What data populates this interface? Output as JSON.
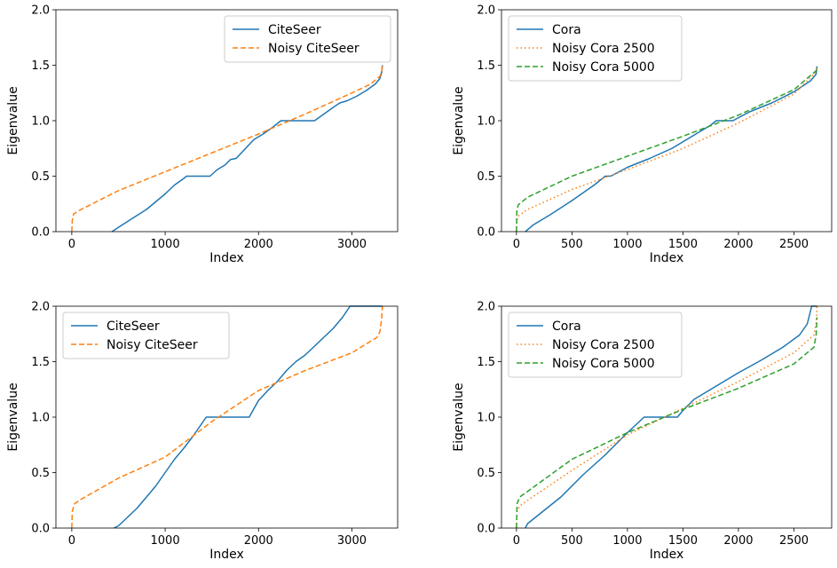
{
  "chart_data": [
    {
      "type": "line",
      "xlabel": "Index",
      "ylabel": "Eigenvalue",
      "xlim": [
        -170,
        3490
      ],
      "ylim": [
        0,
        2
      ],
      "xticks": [
        0,
        1000,
        2000,
        3000
      ],
      "xtick_labels": [
        "0",
        "1000",
        "2000",
        "3000"
      ],
      "yticks": [
        0,
        0.5,
        1.0,
        1.5,
        2.0
      ],
      "ytick_labels": [
        "0.0",
        "0.5",
        "1.0",
        "1.5",
        "2.0"
      ],
      "legend_position": "top-right",
      "grid": false,
      "series": [
        {
          "name": "CiteSeer",
          "color": "#1f77b4",
          "dash": "solid",
          "points": [
            [
              430,
              0
            ],
            [
              520,
              0.05
            ],
            [
              650,
              0.12
            ],
            [
              800,
              0.2
            ],
            [
              900,
              0.27
            ],
            [
              1000,
              0.34
            ],
            [
              1100,
              0.42
            ],
            [
              1200,
              0.48
            ],
            [
              1230,
              0.5
            ],
            [
              1480,
              0.5
            ],
            [
              1560,
              0.56
            ],
            [
              1640,
              0.6
            ],
            [
              1700,
              0.65
            ],
            [
              1760,
              0.66
            ],
            [
              1850,
              0.74
            ],
            [
              1950,
              0.83
            ],
            [
              2050,
              0.88
            ],
            [
              2150,
              0.94
            ],
            [
              2240,
              1.0
            ],
            [
              2600,
              1.0
            ],
            [
              2700,
              1.06
            ],
            [
              2800,
              1.12
            ],
            [
              2870,
              1.16
            ],
            [
              2950,
              1.18
            ],
            [
              3050,
              1.22
            ],
            [
              3150,
              1.27
            ],
            [
              3250,
              1.33
            ],
            [
              3300,
              1.38
            ],
            [
              3320,
              1.44
            ],
            [
              3327,
              1.5
            ]
          ]
        },
        {
          "name": "Noisy CiteSeer",
          "color": "#ff7f0e",
          "dash": "dashed",
          "points": [
            [
              0,
              0
            ],
            [
              5,
              0.1
            ],
            [
              20,
              0.16
            ],
            [
              100,
              0.2
            ],
            [
              500,
              0.37
            ],
            [
              1000,
              0.54
            ],
            [
              1500,
              0.71
            ],
            [
              2000,
              0.88
            ],
            [
              2500,
              1.06
            ],
            [
              3000,
              1.25
            ],
            [
              3200,
              1.33
            ],
            [
              3300,
              1.4
            ],
            [
              3320,
              1.45
            ],
            [
              3327,
              1.5
            ]
          ]
        }
      ]
    },
    {
      "type": "line",
      "xlabel": "Index",
      "ylabel": "Eigenvalue",
      "xlim": [
        -135,
        2840
      ],
      "ylim": [
        0,
        2
      ],
      "xticks": [
        0,
        500,
        1000,
        1500,
        2000,
        2500
      ],
      "xtick_labels": [
        "0",
        "500",
        "1000",
        "1500",
        "2000",
        "2500"
      ],
      "yticks": [
        0,
        0.5,
        1.0,
        1.5,
        2.0
      ],
      "ytick_labels": [
        "0.0",
        "0.5",
        "1.0",
        "1.5",
        "2.0"
      ],
      "legend_position": "top-left",
      "grid": false,
      "series": [
        {
          "name": "Cora",
          "color": "#1f77b4",
          "dash": "solid",
          "points": [
            [
              80,
              0
            ],
            [
              150,
              0.06
            ],
            [
              300,
              0.15
            ],
            [
              500,
              0.28
            ],
            [
              700,
              0.42
            ],
            [
              800,
              0.5
            ],
            [
              850,
              0.5
            ],
            [
              1000,
              0.58
            ],
            [
              1200,
              0.66
            ],
            [
              1400,
              0.75
            ],
            [
              1600,
              0.87
            ],
            [
              1750,
              0.96
            ],
            [
              1800,
              1.0
            ],
            [
              1950,
              1.0
            ],
            [
              2100,
              1.08
            ],
            [
              2300,
              1.16
            ],
            [
              2500,
              1.26
            ],
            [
              2650,
              1.36
            ],
            [
              2700,
              1.42
            ],
            [
              2708,
              1.49
            ]
          ]
        },
        {
          "name": "Noisy Cora 2500",
          "color": "#ff7f0e",
          "dash": "dotted",
          "points": [
            [
              0,
              0
            ],
            [
              3,
              0.1
            ],
            [
              15,
              0.14
            ],
            [
              100,
              0.2
            ],
            [
              500,
              0.38
            ],
            [
              1000,
              0.56
            ],
            [
              1500,
              0.75
            ],
            [
              2000,
              0.98
            ],
            [
              2500,
              1.24
            ],
            [
              2700,
              1.44
            ],
            [
              2708,
              1.49
            ]
          ]
        },
        {
          "name": "Noisy Cora 5000",
          "color": "#2ca02c",
          "dash": "dashed",
          "points": [
            [
              0,
              0
            ],
            [
              3,
              0.18
            ],
            [
              15,
              0.24
            ],
            [
              100,
              0.31
            ],
            [
              500,
              0.5
            ],
            [
              1000,
              0.68
            ],
            [
              1500,
              0.86
            ],
            [
              2000,
              1.05
            ],
            [
              2500,
              1.28
            ],
            [
              2700,
              1.45
            ],
            [
              2708,
              1.49
            ]
          ]
        }
      ]
    },
    {
      "type": "line",
      "xlabel": "Index",
      "ylabel": "Eigenvalue",
      "xlim": [
        -170,
        3490
      ],
      "ylim": [
        0,
        2
      ],
      "xticks": [
        0,
        1000,
        2000,
        3000
      ],
      "xtick_labels": [
        "0",
        "1000",
        "2000",
        "3000"
      ],
      "yticks": [
        0,
        0.5,
        1.0,
        1.5,
        2.0
      ],
      "ytick_labels": [
        "0.0",
        "0.5",
        "1.0",
        "1.5",
        "2.0"
      ],
      "legend_position": "top-left",
      "grid": false,
      "series": [
        {
          "name": "CiteSeer",
          "color": "#1f77b4",
          "dash": "solid",
          "points": [
            [
              450,
              0
            ],
            [
              500,
              0.02
            ],
            [
              600,
              0.1
            ],
            [
              700,
              0.18
            ],
            [
              800,
              0.28
            ],
            [
              900,
              0.38
            ],
            [
              1000,
              0.5
            ],
            [
              1100,
              0.62
            ],
            [
              1200,
              0.72
            ],
            [
              1300,
              0.83
            ],
            [
              1440,
              1.0
            ],
            [
              1900,
              1.0
            ],
            [
              2000,
              1.15
            ],
            [
              2100,
              1.24
            ],
            [
              2200,
              1.32
            ],
            [
              2300,
              1.42
            ],
            [
              2400,
              1.5
            ],
            [
              2500,
              1.56
            ],
            [
              2600,
              1.64
            ],
            [
              2700,
              1.72
            ],
            [
              2800,
              1.8
            ],
            [
              2900,
              1.9
            ],
            [
              2980,
              2.0
            ],
            [
              3327,
              2.0
            ]
          ]
        },
        {
          "name": "Noisy CiteSeer",
          "color": "#ff7f0e",
          "dash": "dashed",
          "points": [
            [
              0,
              0
            ],
            [
              5,
              0.15
            ],
            [
              30,
              0.22
            ],
            [
              100,
              0.26
            ],
            [
              500,
              0.45
            ],
            [
              1000,
              0.64
            ],
            [
              1500,
              0.96
            ],
            [
              2000,
              1.24
            ],
            [
              2500,
              1.42
            ],
            [
              3000,
              1.58
            ],
            [
              3270,
              1.72
            ],
            [
              3300,
              1.77
            ],
            [
              3320,
              1.9
            ],
            [
              3327,
              2.0
            ]
          ]
        }
      ]
    },
    {
      "type": "line",
      "xlabel": "Index",
      "ylabel": "Eigenvalue",
      "xlim": [
        -135,
        2840
      ],
      "ylim": [
        0,
        2
      ],
      "xticks": [
        0,
        500,
        1000,
        1500,
        2000,
        2500
      ],
      "xtick_labels": [
        "0",
        "500",
        "1000",
        "1500",
        "2000",
        "2500"
      ],
      "yticks": [
        0,
        0.5,
        1.0,
        1.5,
        2.0
      ],
      "ytick_labels": [
        "0.0",
        "0.5",
        "1.0",
        "1.5",
        "2.0"
      ],
      "legend_position": "top-left",
      "grid": false,
      "series": [
        {
          "name": "Cora",
          "color": "#1f77b4",
          "dash": "solid",
          "points": [
            [
              80,
              0
            ],
            [
              100,
              0.04
            ],
            [
              200,
              0.12
            ],
            [
              400,
              0.28
            ],
            [
              600,
              0.48
            ],
            [
              800,
              0.66
            ],
            [
              1000,
              0.86
            ],
            [
              1150,
              1.0
            ],
            [
              1450,
              1.0
            ],
            [
              1500,
              1.06
            ],
            [
              1600,
              1.16
            ],
            [
              1800,
              1.28
            ],
            [
              2000,
              1.4
            ],
            [
              2200,
              1.51
            ],
            [
              2400,
              1.63
            ],
            [
              2550,
              1.74
            ],
            [
              2620,
              1.84
            ],
            [
              2660,
              2.0
            ],
            [
              2708,
              2.0
            ]
          ]
        },
        {
          "name": "Noisy Cora 2500",
          "color": "#ff7f0e",
          "dash": "dotted",
          "points": [
            [
              0,
              0
            ],
            [
              5,
              0.15
            ],
            [
              30,
              0.2
            ],
            [
              100,
              0.25
            ],
            [
              500,
              0.52
            ],
            [
              1000,
              0.84
            ],
            [
              1500,
              1.08
            ],
            [
              2000,
              1.32
            ],
            [
              2500,
              1.58
            ],
            [
              2680,
              1.74
            ],
            [
              2700,
              1.85
            ],
            [
              2708,
              2.0
            ]
          ]
        },
        {
          "name": "Noisy Cora 5000",
          "color": "#2ca02c",
          "dash": "dashed",
          "points": [
            [
              0,
              0
            ],
            [
              5,
              0.22
            ],
            [
              30,
              0.28
            ],
            [
              100,
              0.33
            ],
            [
              500,
              0.62
            ],
            [
              1000,
              0.86
            ],
            [
              1500,
              1.07
            ],
            [
              2000,
              1.26
            ],
            [
              2500,
              1.48
            ],
            [
              2680,
              1.63
            ],
            [
              2700,
              1.74
            ],
            [
              2708,
              1.9
            ]
          ]
        }
      ]
    }
  ]
}
